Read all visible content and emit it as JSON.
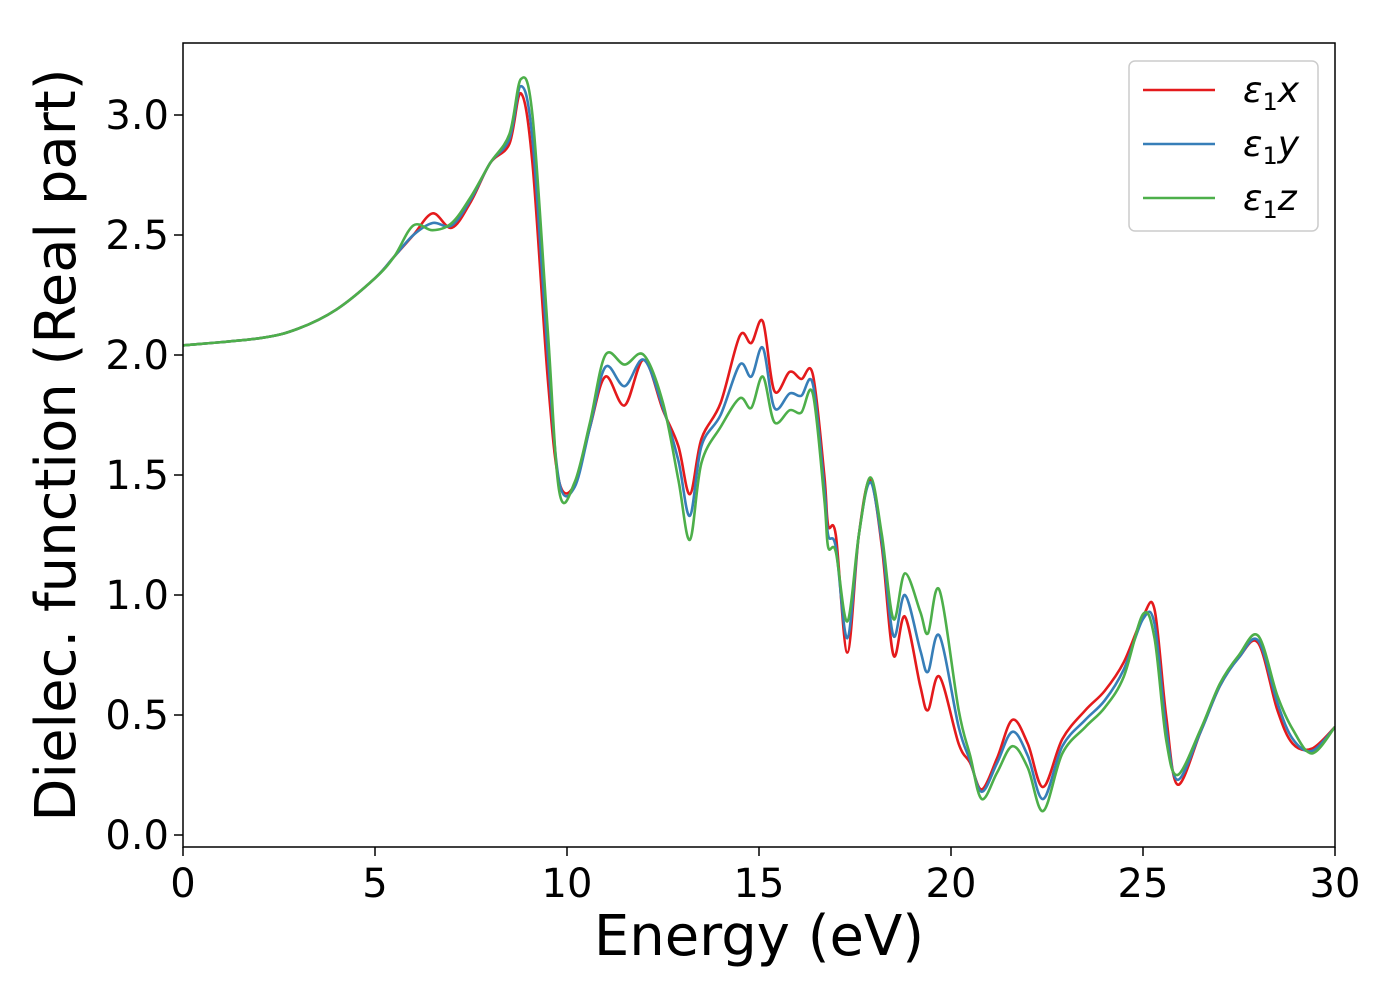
{
  "chart_data": {
    "type": "line",
    "xlabel": "Energy (eV)",
    "ylabel": "Dielec. function (Real part)",
    "xlim": [
      0,
      30
    ],
    "ylim": [
      -0.05,
      3.3
    ],
    "xticks": [
      0,
      5,
      10,
      15,
      20,
      25,
      30
    ],
    "xtick_labels": [
      "0",
      "5",
      "10",
      "15",
      "20",
      "25",
      "30"
    ],
    "yticks": [
      0.0,
      0.5,
      1.0,
      1.5,
      2.0,
      2.5,
      3.0
    ],
    "ytick_labels": [
      "0.0",
      "0.5",
      "1.0",
      "1.5",
      "2.0",
      "2.5",
      "3.0"
    ],
    "grid": false,
    "legend_position": "top-right",
    "series": [
      {
        "name": "ε1x",
        "legend_base": "ε",
        "legend_sub": "1",
        "legend_suffix": "x",
        "color": "#e41a1c",
        "points": [
          [
            0,
            2.04
          ],
          [
            2,
            2.07
          ],
          [
            3,
            2.11
          ],
          [
            4,
            2.19
          ],
          [
            5,
            2.32
          ],
          [
            5.5,
            2.41
          ],
          [
            6,
            2.5
          ],
          [
            6.5,
            2.59
          ],
          [
            7,
            2.53
          ],
          [
            7.5,
            2.64
          ],
          [
            8,
            2.8
          ],
          [
            8.5,
            2.88
          ],
          [
            8.8,
            3.09
          ],
          [
            9.1,
            2.8
          ],
          [
            9.5,
            1.9
          ],
          [
            9.8,
            1.47
          ],
          [
            10.2,
            1.46
          ],
          [
            10.6,
            1.7
          ],
          [
            11.0,
            1.91
          ],
          [
            11.5,
            1.79
          ],
          [
            12.0,
            1.98
          ],
          [
            12.5,
            1.77
          ],
          [
            12.9,
            1.62
          ],
          [
            13.2,
            1.42
          ],
          [
            13.5,
            1.65
          ],
          [
            14.0,
            1.8
          ],
          [
            14.5,
            2.08
          ],
          [
            14.8,
            2.05
          ],
          [
            15.1,
            2.14
          ],
          [
            15.4,
            1.85
          ],
          [
            15.8,
            1.93
          ],
          [
            16.1,
            1.9
          ],
          [
            16.4,
            1.92
          ],
          [
            16.7,
            1.5
          ],
          [
            16.8,
            1.29
          ],
          [
            17.0,
            1.25
          ],
          [
            17.3,
            0.76
          ],
          [
            17.6,
            1.25
          ],
          [
            17.9,
            1.48
          ],
          [
            18.2,
            1.2
          ],
          [
            18.5,
            0.75
          ],
          [
            18.8,
            0.91
          ],
          [
            19.2,
            0.62
          ],
          [
            19.4,
            0.52
          ],
          [
            19.7,
            0.66
          ],
          [
            20.2,
            0.38
          ],
          [
            20.5,
            0.3
          ],
          [
            20.8,
            0.19
          ],
          [
            21.2,
            0.32
          ],
          [
            21.6,
            0.48
          ],
          [
            22.0,
            0.38
          ],
          [
            22.4,
            0.2
          ],
          [
            22.9,
            0.4
          ],
          [
            23.5,
            0.52
          ],
          [
            24.0,
            0.6
          ],
          [
            24.5,
            0.72
          ],
          [
            25.0,
            0.91
          ],
          [
            25.3,
            0.94
          ],
          [
            25.6,
            0.5
          ],
          [
            25.9,
            0.21
          ],
          [
            26.5,
            0.43
          ],
          [
            27.0,
            0.62
          ],
          [
            27.5,
            0.74
          ],
          [
            28.0,
            0.8
          ],
          [
            28.5,
            0.52
          ],
          [
            28.9,
            0.38
          ],
          [
            29.4,
            0.36
          ],
          [
            30,
            0.45
          ]
        ]
      },
      {
        "name": "ε1y",
        "legend_base": "ε",
        "legend_sub": "1",
        "legend_suffix": "y",
        "color": "#377eb8",
        "points": [
          [
            0,
            2.04
          ],
          [
            2,
            2.07
          ],
          [
            3,
            2.11
          ],
          [
            4,
            2.19
          ],
          [
            5,
            2.32
          ],
          [
            5.5,
            2.41
          ],
          [
            6,
            2.5
          ],
          [
            6.5,
            2.55
          ],
          [
            7,
            2.54
          ],
          [
            7.5,
            2.65
          ],
          [
            8,
            2.8
          ],
          [
            8.5,
            2.9
          ],
          [
            8.8,
            3.12
          ],
          [
            9.1,
            2.9
          ],
          [
            9.5,
            2.0
          ],
          [
            9.8,
            1.47
          ],
          [
            10.2,
            1.45
          ],
          [
            10.6,
            1.7
          ],
          [
            11.0,
            1.95
          ],
          [
            11.5,
            1.87
          ],
          [
            12.0,
            1.98
          ],
          [
            12.5,
            1.78
          ],
          [
            12.9,
            1.56
          ],
          [
            13.2,
            1.33
          ],
          [
            13.5,
            1.62
          ],
          [
            14.0,
            1.75
          ],
          [
            14.5,
            1.96
          ],
          [
            14.8,
            1.91
          ],
          [
            15.1,
            2.03
          ],
          [
            15.4,
            1.78
          ],
          [
            15.8,
            1.84
          ],
          [
            16.1,
            1.83
          ],
          [
            16.4,
            1.88
          ],
          [
            16.7,
            1.45
          ],
          [
            16.8,
            1.25
          ],
          [
            17.0,
            1.2
          ],
          [
            17.3,
            0.82
          ],
          [
            17.6,
            1.25
          ],
          [
            17.9,
            1.47
          ],
          [
            18.2,
            1.22
          ],
          [
            18.5,
            0.83
          ],
          [
            18.8,
            1.0
          ],
          [
            19.2,
            0.77
          ],
          [
            19.4,
            0.68
          ],
          [
            19.7,
            0.83
          ],
          [
            20.2,
            0.45
          ],
          [
            20.5,
            0.31
          ],
          [
            20.8,
            0.18
          ],
          [
            21.2,
            0.3
          ],
          [
            21.6,
            0.43
          ],
          [
            22.0,
            0.33
          ],
          [
            22.4,
            0.15
          ],
          [
            22.9,
            0.37
          ],
          [
            23.5,
            0.48
          ],
          [
            24.0,
            0.56
          ],
          [
            24.5,
            0.69
          ],
          [
            25.0,
            0.9
          ],
          [
            25.3,
            0.88
          ],
          [
            25.6,
            0.45
          ],
          [
            25.9,
            0.23
          ],
          [
            26.5,
            0.43
          ],
          [
            27.0,
            0.62
          ],
          [
            27.5,
            0.74
          ],
          [
            28.0,
            0.81
          ],
          [
            28.5,
            0.55
          ],
          [
            28.9,
            0.4
          ],
          [
            29.4,
            0.35
          ],
          [
            30,
            0.45
          ]
        ]
      },
      {
        "name": "ε1z",
        "legend_base": "ε",
        "legend_sub": "1",
        "legend_suffix": "z",
        "color": "#4daf4a",
        "points": [
          [
            0,
            2.04
          ],
          [
            2,
            2.07
          ],
          [
            3,
            2.11
          ],
          [
            4,
            2.19
          ],
          [
            5,
            2.32
          ],
          [
            5.5,
            2.41
          ],
          [
            6,
            2.54
          ],
          [
            6.5,
            2.52
          ],
          [
            7,
            2.55
          ],
          [
            7.5,
            2.66
          ],
          [
            8,
            2.8
          ],
          [
            8.5,
            2.92
          ],
          [
            8.8,
            3.15
          ],
          [
            9.1,
            3.0
          ],
          [
            9.5,
            2.1
          ],
          [
            9.8,
            1.43
          ],
          [
            10.2,
            1.47
          ],
          [
            10.6,
            1.72
          ],
          [
            11.0,
            2.0
          ],
          [
            11.5,
            1.96
          ],
          [
            12.0,
            2.0
          ],
          [
            12.5,
            1.8
          ],
          [
            12.9,
            1.48
          ],
          [
            13.2,
            1.23
          ],
          [
            13.5,
            1.55
          ],
          [
            14.0,
            1.7
          ],
          [
            14.5,
            1.82
          ],
          [
            14.8,
            1.78
          ],
          [
            15.1,
            1.91
          ],
          [
            15.4,
            1.72
          ],
          [
            15.8,
            1.77
          ],
          [
            16.1,
            1.76
          ],
          [
            16.4,
            1.84
          ],
          [
            16.7,
            1.4
          ],
          [
            16.8,
            1.2
          ],
          [
            17.0,
            1.18
          ],
          [
            17.3,
            0.89
          ],
          [
            17.6,
            1.25
          ],
          [
            17.9,
            1.49
          ],
          [
            18.2,
            1.25
          ],
          [
            18.5,
            0.9
          ],
          [
            18.8,
            1.09
          ],
          [
            19.2,
            0.93
          ],
          [
            19.4,
            0.84
          ],
          [
            19.7,
            1.02
          ],
          [
            20.2,
            0.52
          ],
          [
            20.5,
            0.33
          ],
          [
            20.8,
            0.15
          ],
          [
            21.2,
            0.26
          ],
          [
            21.6,
            0.37
          ],
          [
            22.0,
            0.28
          ],
          [
            22.4,
            0.1
          ],
          [
            22.9,
            0.34
          ],
          [
            23.5,
            0.45
          ],
          [
            24.0,
            0.53
          ],
          [
            24.5,
            0.66
          ],
          [
            25.0,
            0.92
          ],
          [
            25.3,
            0.82
          ],
          [
            25.6,
            0.4
          ],
          [
            25.9,
            0.25
          ],
          [
            26.5,
            0.44
          ],
          [
            27.0,
            0.63
          ],
          [
            27.5,
            0.75
          ],
          [
            28.0,
            0.83
          ],
          [
            28.5,
            0.58
          ],
          [
            28.9,
            0.44
          ],
          [
            29.4,
            0.34
          ],
          [
            30,
            0.45
          ]
        ]
      }
    ]
  }
}
